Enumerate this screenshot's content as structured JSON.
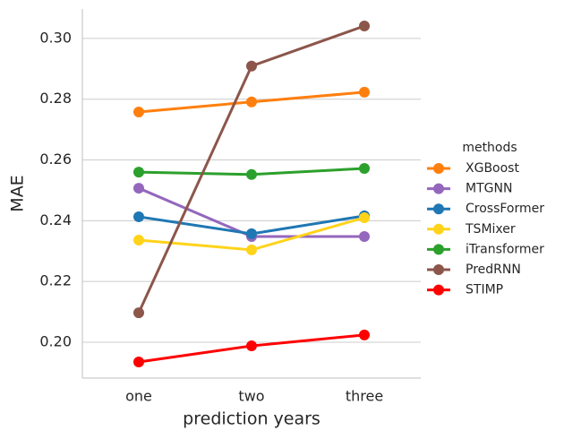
{
  "chart_data": {
    "type": "pointplot",
    "x_label": "prediction years",
    "y_label": "MAE",
    "legend_title": "methods",
    "legend_position": "right",
    "categories": [
      "one",
      "two",
      "three"
    ],
    "series": [
      {
        "name": "XGBoost",
        "color": "#ff7f0e",
        "values": [
          0.2758,
          0.2791,
          0.2823
        ]
      },
      {
        "name": "MTGNN",
        "color": "#9467bd",
        "values": [
          0.2507,
          0.2348,
          0.2348
        ]
      },
      {
        "name": "CrossFormer",
        "color": "#1f77b4",
        "values": [
          0.2413,
          0.2357,
          0.2416
        ]
      },
      {
        "name": "TSMixer",
        "color": "#ffd31a",
        "values": [
          0.2336,
          0.2304,
          0.241
        ]
      },
      {
        "name": "iTransformer",
        "color": "#2ca02c",
        "values": [
          0.256,
          0.2552,
          0.2572
        ]
      },
      {
        "name": "PredRNN",
        "color": "#8c564b",
        "values": [
          0.2097,
          0.2909,
          0.3041
        ]
      },
      {
        "name": "STIMP",
        "color": "#ff0000",
        "values": [
          0.1935,
          0.1988,
          0.2024
        ]
      }
    ],
    "ylim": [
      0.1882,
      0.3097
    ],
    "yticks": [
      {
        "value": 0.2,
        "label": "0.20"
      },
      0.22,
      0.24,
      0.26,
      0.28,
      {
        "value": 0.3,
        "label": "0.30"
      }
    ],
    "grid": true
  }
}
